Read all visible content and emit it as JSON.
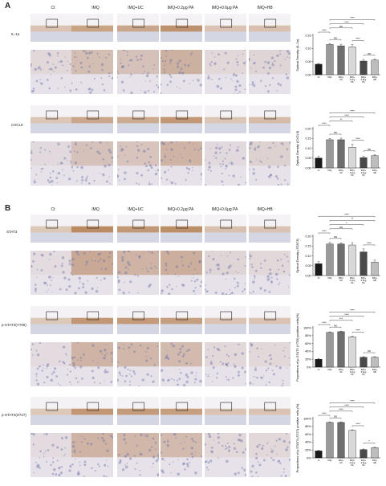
{
  "panels": [
    {
      "letter": "A",
      "columns": [
        "Ct",
        "IMQ",
        "IMQ+UC",
        "IMQ+0.2μg PA",
        "IMQ+0.6μg PA",
        "IMQ+HB"
      ],
      "rows": [
        {
          "label": "IL-1α",
          "chart_data": {
            "type": "bar",
            "categories": [
              "Ct",
              "IMQ",
              "IMQ+UC",
              "IMQ+0.2μg PA",
              "IMQ+0.6μg PA",
              "IMQ+HB"
            ],
            "values": [
              0.04,
              0.115,
              0.11,
              0.106,
              0.052,
              0.056
            ],
            "errors": [
              0.003,
              0.004,
              0.006,
              0.009,
              0.006,
              0.003
            ],
            "ylabel": "Optical Density (IL-1α)",
            "ylim": [
              0,
              0.15
            ],
            "yticks": [
              "0.00",
              "0.05",
              "0.10",
              "0.15"
            ],
            "significance": [
              {
                "from": 0,
                "to": 1,
                "label": "****"
              },
              {
                "from": 1,
                "to": 2,
                "label": "ns"
              },
              {
                "from": 1,
                "to": 3,
                "label": "ns"
              },
              {
                "from": 1,
                "to": 4,
                "label": "****"
              },
              {
                "from": 1,
                "to": 5,
                "label": "****"
              },
              {
                "from": 3,
                "to": 4,
                "label": "****"
              },
              {
                "from": 4,
                "to": 5,
                "label": "ns"
              }
            ]
          }
        },
        {
          "label": "CXCL9",
          "chart_data": {
            "type": "bar",
            "categories": [
              "Ct",
              "IMQ",
              "IMQ+UC",
              "IMQ+0.2μg PA",
              "IMQ+0.6μg PA",
              "IMQ+HB"
            ],
            "values": [
              0.05,
              0.143,
              0.143,
              0.105,
              0.052,
              0.062
            ],
            "errors": [
              0.008,
              0.006,
              0.008,
              0.015,
              0.007,
              0.004
            ],
            "ylabel": "Optical Density (CXCL9)",
            "ylim": [
              0,
              0.2
            ],
            "yticks": [
              "0.00",
              "0.05",
              "0.10",
              "0.15",
              "0.20"
            ],
            "significance": [
              {
                "from": 0,
                "to": 1,
                "label": "****"
              },
              {
                "from": 1,
                "to": 2,
                "label": "ns"
              },
              {
                "from": 1,
                "to": 3,
                "label": "**"
              },
              {
                "from": 1,
                "to": 4,
                "label": "****"
              },
              {
                "from": 1,
                "to": 5,
                "label": "****"
              },
              {
                "from": 3,
                "to": 4,
                "label": "****"
              },
              {
                "from": 4,
                "to": 5,
                "label": "ns"
              }
            ]
          }
        }
      ]
    },
    {
      "letter": "B",
      "columns": [
        "Ct",
        "IMQ",
        "IMQ+UC",
        "IMQ+0.2μg PA",
        "IMQ+0.6μg PA",
        "IMQ+HB"
      ],
      "rows": [
        {
          "label": "STAT3",
          "chart_data": {
            "type": "bar",
            "categories": [
              "Ct",
              "IMQ",
              "IMQ+UC",
              "IMQ+0.2μg PA",
              "IMQ+0.6μg PA",
              "IMQ+HB"
            ],
            "values": [
              0.06,
              0.16,
              0.16,
              0.155,
              0.12,
              0.068
            ],
            "errors": [
              0.01,
              0.008,
              0.006,
              0.012,
              0.015,
              0.01
            ],
            "ylabel": "Optical Density (STAT3)",
            "ylim": [
              0,
              0.2
            ],
            "yticks": [
              "0.00",
              "0.05",
              "0.10",
              "0.15",
              "0.20"
            ],
            "significance": [
              {
                "from": 0,
                "to": 1,
                "label": "****"
              },
              {
                "from": 1,
                "to": 2,
                "label": "ns"
              },
              {
                "from": 1,
                "to": 3,
                "label": "ns"
              },
              {
                "from": 1,
                "to": 4,
                "label": "*"
              },
              {
                "from": 1,
                "to": 5,
                "label": "**"
              },
              {
                "from": 0,
                "to": 5,
                "label": "****"
              },
              {
                "from": 4,
                "to": 5,
                "label": "****"
              }
            ]
          }
        },
        {
          "label": "p-STAT3(Y705)",
          "chart_data": {
            "type": "bar",
            "categories": [
              "Ct",
              "IMQ",
              "IMQ+UC",
              "IMQ+0.2μg PA",
              "IMQ+0.6μg PA",
              "IMQ+HB"
            ],
            "values": [
              20,
              88,
              90,
              77,
              25,
              25
            ],
            "errors": [
              2,
              1.5,
              1.5,
              1.5,
              1.5,
              1.5
            ],
            "ylabel": "Proportions of p-STAT3 (Y705) positive cells(%)",
            "ylim": [
              0,
              100
            ],
            "yticks": [
              "0%",
              "20%",
              "40%",
              "60%",
              "80%",
              "100%"
            ],
            "significance": [
              {
                "from": 0,
                "to": 1,
                "label": "****"
              },
              {
                "from": 1,
                "to": 2,
                "label": "ns"
              },
              {
                "from": 1,
                "to": 3,
                "label": "***"
              },
              {
                "from": 1,
                "to": 4,
                "label": "****"
              },
              {
                "from": 1,
                "to": 5,
                "label": "****"
              },
              {
                "from": 3,
                "to": 4,
                "label": "****"
              },
              {
                "from": 4,
                "to": 5,
                "label": "ns"
              }
            ]
          }
        },
        {
          "label": "p-STAT3(S727)",
          "chart_data": {
            "type": "bar",
            "categories": [
              "Ct",
              "IMQ",
              "IMQ+UC",
              "IMQ+0.2μg PA",
              "IMQ+0.6μg PA",
              "IMQ+HB"
            ],
            "values": [
              18,
              90,
              90,
              70,
              21,
              26
            ],
            "errors": [
              1.5,
              1.5,
              1.5,
              1.5,
              1.5,
              1.5
            ],
            "ylabel": "Proportions of p-STAT3 (S727) positive cells (%)",
            "ylim": [
              0,
              100
            ],
            "yticks": [
              "0%",
              "20%",
              "40%",
              "60%",
              "80%",
              "100%"
            ],
            "significance": [
              {
                "from": 0,
                "to": 1,
                "label": "****"
              },
              {
                "from": 1,
                "to": 2,
                "label": "ns"
              },
              {
                "from": 1,
                "to": 3,
                "label": "****"
              },
              {
                "from": 1,
                "to": 4,
                "label": "****"
              },
              {
                "from": 1,
                "to": 5,
                "label": "****"
              },
              {
                "from": 3,
                "to": 4,
                "label": "****"
              },
              {
                "from": 4,
                "to": 5,
                "label": "*"
              }
            ]
          }
        }
      ]
    }
  ],
  "x_tick_labels": [
    "Ct",
    "IMQ",
    "IMQ+ UC",
    "IMQ+ 0.2μg PA",
    "IMQ+ 0.6μg PA",
    "IMQ+ HB"
  ],
  "colors": {
    "bars": [
      "#1a1a1a",
      "#9a9a9a",
      "#6e6e6e",
      "#d8d8d8",
      "#4a4a4a",
      "#bdbdbd"
    ],
    "dab_brown": "#a86a36",
    "hema_blue": "#9aa3c6",
    "tissue_bg": "#e7e2ea"
  }
}
